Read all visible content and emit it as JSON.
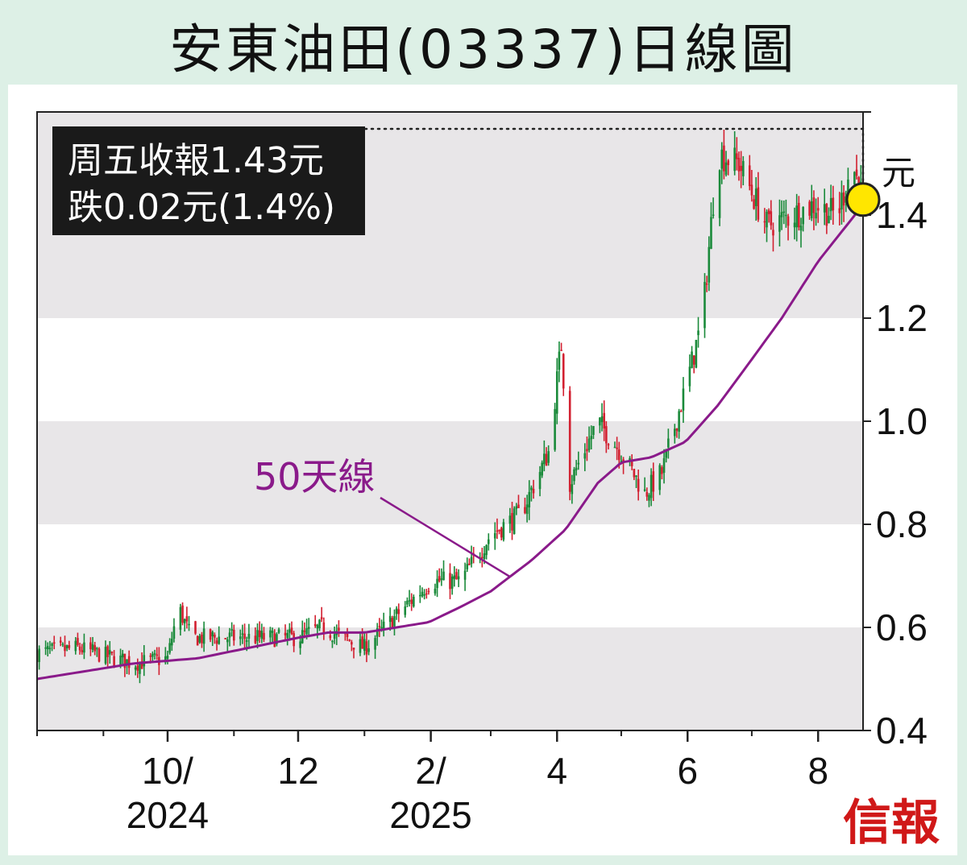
{
  "title": "安東油田(03337)日線圖",
  "info_box": {
    "line1": "周五收報1.43元",
    "line2": "跌0.02元(1.4%)"
  },
  "ma_label": "50天線",
  "brand": "信報",
  "colors": {
    "page_background": "#ddf0e6",
    "band": "#e8e6e8",
    "up_candle": "#1a8a3a",
    "down_candle": "#d22030",
    "ma_line": "#8a1a8a",
    "highlight": "#ffe600",
    "info_box_bg": "#1a1a1a",
    "brand": "#d01818"
  },
  "chart_data": {
    "type": "candlestick",
    "y_unit": "元",
    "ylim": [
      0.4,
      1.6
    ],
    "y_ticks": [
      "0.4",
      "0.6",
      "0.8",
      "1.0",
      "1.2",
      "1.4"
    ],
    "x_range": [
      "2024-08-01",
      "2025-08-22"
    ],
    "x_ticks": [
      {
        "date": "2024-10-01",
        "label": [
          "10/",
          "2024"
        ]
      },
      {
        "date": "2024-12-01",
        "label": [
          "12"
        ]
      },
      {
        "date": "2025-02-01",
        "label": [
          "2/",
          "2025"
        ]
      },
      {
        "date": "2025-04-01",
        "label": [
          "4"
        ]
      },
      {
        "date": "2025-06-01",
        "label": [
          "6"
        ]
      },
      {
        "date": "2025-08-01",
        "label": [
          "8"
        ]
      }
    ],
    "price_path": [
      [
        "2024-08-01",
        0.55
      ],
      [
        "2024-08-20",
        0.56
      ],
      [
        "2024-09-15",
        0.53
      ],
      [
        "2024-10-01",
        0.54
      ],
      [
        "2024-10-06",
        0.64
      ],
      [
        "2024-10-12",
        0.58
      ],
      [
        "2024-11-10",
        0.58
      ],
      [
        "2024-12-01",
        0.58
      ],
      [
        "2024-12-12",
        0.6
      ],
      [
        "2025-01-01",
        0.56
      ],
      [
        "2025-01-20",
        0.64
      ],
      [
        "2025-02-01",
        0.69
      ],
      [
        "2025-02-15",
        0.69
      ],
      [
        "2025-03-01",
        0.78
      ],
      [
        "2025-03-15",
        0.82
      ],
      [
        "2025-03-28",
        0.94
      ],
      [
        "2025-04-03",
        1.15
      ],
      [
        "2025-04-07",
        0.88
      ],
      [
        "2025-04-20",
        1.0
      ],
      [
        "2025-05-01",
        0.94
      ],
      [
        "2025-05-12",
        0.86
      ],
      [
        "2025-05-20",
        0.9
      ],
      [
        "2025-06-01",
        1.08
      ],
      [
        "2025-06-08",
        1.2
      ],
      [
        "2025-06-15",
        1.52
      ],
      [
        "2025-06-25",
        1.5
      ],
      [
        "2025-07-08",
        1.38
      ],
      [
        "2025-07-20",
        1.4
      ],
      [
        "2025-07-30",
        1.42
      ],
      [
        "2025-08-10",
        1.4
      ],
      [
        "2025-08-17",
        1.5
      ],
      [
        "2025-08-22",
        1.43
      ]
    ],
    "ma50_path": [
      [
        "2024-08-01",
        0.5
      ],
      [
        "2024-09-15",
        0.53
      ],
      [
        "2024-10-15",
        0.54
      ],
      [
        "2024-12-01",
        0.58
      ],
      [
        "2024-12-15",
        0.59
      ],
      [
        "2025-01-01",
        0.59
      ],
      [
        "2025-01-31",
        0.61
      ],
      [
        "2025-02-15",
        0.64
      ],
      [
        "2025-03-01",
        0.67
      ],
      [
        "2025-03-20",
        0.73
      ],
      [
        "2025-04-05",
        0.79
      ],
      [
        "2025-04-20",
        0.88
      ],
      [
        "2025-05-01",
        0.92
      ],
      [
        "2025-05-15",
        0.93
      ],
      [
        "2025-05-31",
        0.96
      ],
      [
        "2025-06-15",
        1.03
      ],
      [
        "2025-07-01",
        1.12
      ],
      [
        "2025-07-15",
        1.2
      ],
      [
        "2025-08-01",
        1.31
      ],
      [
        "2025-08-22",
        1.42
      ]
    ],
    "last_close": {
      "date": "2025-08-22",
      "value": 1.43
    }
  }
}
